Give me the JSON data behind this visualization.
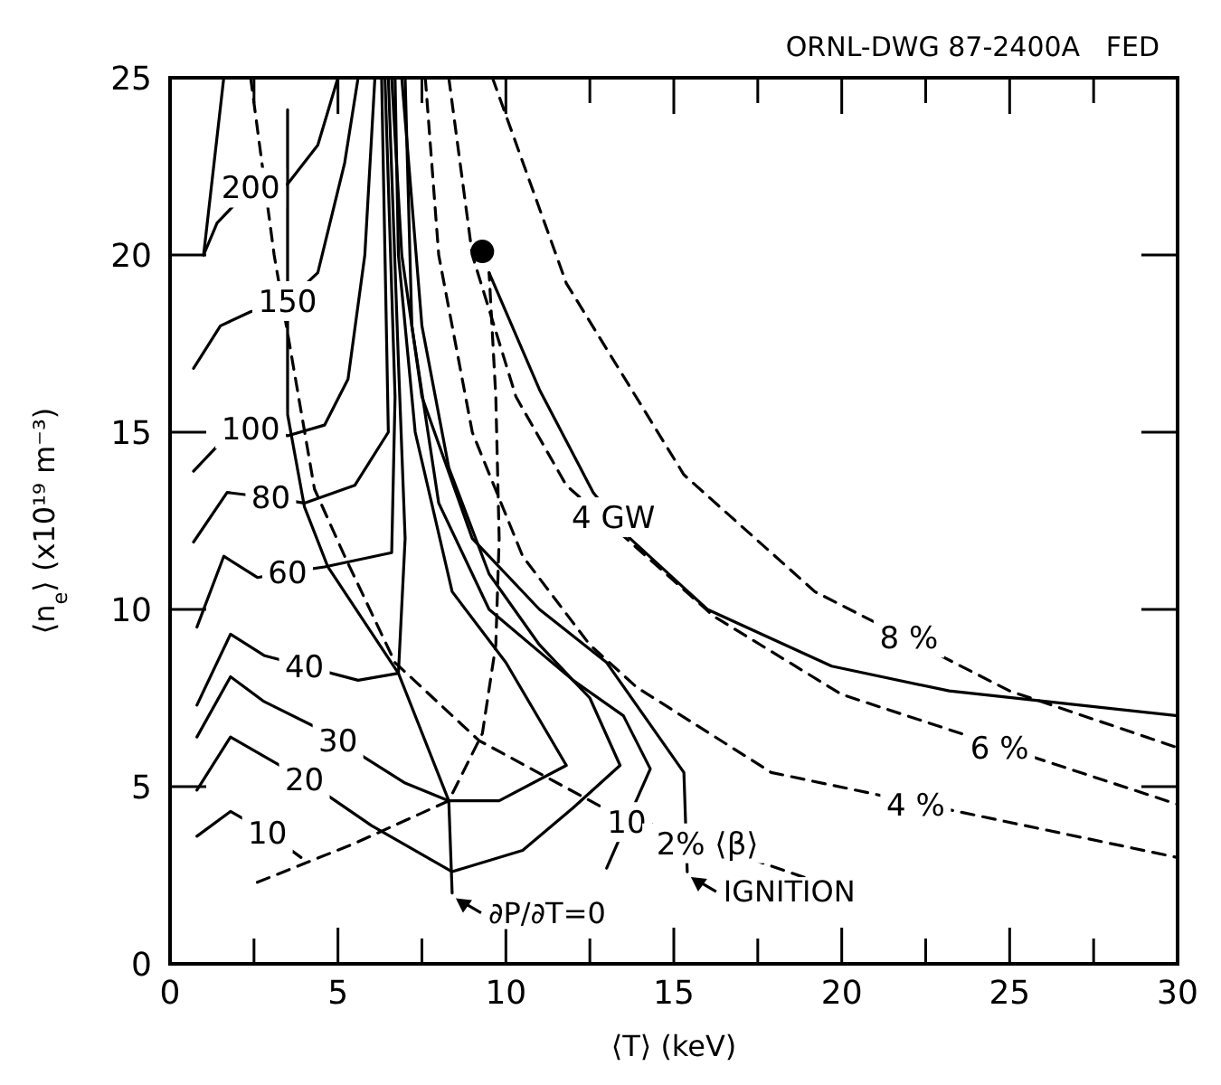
{
  "chart_data": {
    "type": "line",
    "xlabel": "⟨T⟩ (keV)",
    "ylabel": "⟨n$_{e}$⟩ (x10¹⁹ m⁻³)",
    "xlim": [
      0,
      30
    ],
    "ylim": [
      0,
      25
    ],
    "xticks": [
      0,
      {
        "value": 2.5,
        "label": null
      },
      5,
      {
        "value": 7.5,
        "label": null
      },
      10,
      {
        "value": 12.5,
        "label": null
      },
      15,
      {
        "value": 17.5,
        "label": null
      },
      20,
      {
        "value": 22.5,
        "label": null
      },
      25,
      {
        "value": 27.5,
        "label": null
      },
      30
    ],
    "yticks": [
      0,
      5,
      10,
      15,
      20,
      25
    ],
    "grid": false,
    "marker": "none",
    "series": [
      {
        "type": "line",
        "color": "#000000",
        "line_style": "solid",
        "x": [
          0.8,
          1.8,
          2.9,
          3.9
        ],
        "values": [
          3.6,
          4.3,
          3.7,
          3.0
        ]
      },
      {
        "type": "line",
        "color": "#000000",
        "line_style": "solid",
        "x": [
          7.0,
          7.2,
          8.0,
          9.5,
          12.0,
          13.5,
          14.3,
          13.6,
          13.0
        ],
        "values": [
          25,
          18,
          13,
          10,
          8,
          7,
          5.5,
          4.0,
          2.7
        ]
      },
      {
        "type": "line",
        "color": "#000000",
        "line_style": "solid",
        "x": [
          0.8,
          1.8,
          4.0,
          6.0,
          8.4,
          10.5,
          12.0,
          13.4,
          12.5,
          11.0,
          9.5,
          8.3,
          7.5,
          6.9
        ],
        "values": [
          4.9,
          6.4,
          5.2,
          3.9,
          2.6,
          3.2,
          4.4,
          5.6,
          7.5,
          9.0,
          11.0,
          14.0,
          18.0,
          25
        ]
      },
      {
        "type": "line",
        "color": "#000000",
        "line_style": "solid",
        "x": [
          0.8,
          1.8,
          2.8,
          4.5,
          5.0,
          7.0,
          8.3,
          9.8,
          11.8,
          10.0,
          8.4,
          7.3,
          6.8,
          6.7
        ],
        "values": [
          6.4,
          8.1,
          7.4,
          6.6,
          6.3,
          5.1,
          4.6,
          4.6,
          5.6,
          8.5,
          10.5,
          15,
          20,
          25
        ]
      },
      {
        "type": "line",
        "color": "#000000",
        "line_style": "solid",
        "x": [
          0.8,
          1.8,
          2.8,
          5.6,
          6.8,
          7.0,
          6.8,
          6.5
        ],
        "values": [
          7.3,
          9.3,
          8.7,
          8.0,
          8.2,
          12,
          17,
          25
        ]
      },
      {
        "type": "line",
        "color": "#000000",
        "line_style": "solid",
        "x": [
          0.8,
          1.6,
          2.6,
          3.5,
          4.6,
          6.6,
          6.7,
          6.4
        ],
        "values": [
          9.5,
          11.5,
          10.9,
          11.05,
          11.2,
          11.6,
          16,
          25
        ]
      },
      {
        "type": "line",
        "color": "#000000",
        "line_style": "solid",
        "x": [
          0.7,
          1.7,
          3.0,
          4.0,
          5.5,
          6.5,
          6.4,
          6.3
        ],
        "values": [
          11.9,
          13.3,
          13.15,
          13.0,
          13.5,
          15,
          20,
          25
        ]
      },
      {
        "type": "line",
        "color": "#000000",
        "line_style": "solid",
        "x": [
          0.7,
          1.7,
          2.4,
          3.5,
          4.6,
          5.3,
          5.8,
          6.1
        ],
        "values": [
          13.9,
          14.9,
          15.1,
          14.9,
          15.2,
          16.5,
          20,
          25
        ]
      },
      {
        "type": "line",
        "color": "#000000",
        "line_style": "solid",
        "x": [
          0.7,
          1.5,
          2.4,
          3.5,
          4.4,
          5.2,
          5.6
        ],
        "values": [
          16.8,
          18.0,
          18.4,
          18.7,
          19.5,
          22.6,
          25
        ]
      },
      {
        "type": "line",
        "color": "#000000",
        "line_style": "solid",
        "x": [
          1.0,
          1.4,
          2.4,
          3.5,
          4.4,
          5.0
        ],
        "values": [
          20.0,
          20.9,
          21.9,
          22.0,
          23.1,
          25
        ]
      },
      {
        "type": "line",
        "color": "#000000",
        "line_style": "solid",
        "x": [
          1.6,
          1.0
        ],
        "values": [
          25,
          20.0
        ]
      },
      {
        "type": "line",
        "color": "#000000",
        "line_style": "solid",
        "x": [
          3.5,
          3.5,
          4.0,
          4.7,
          6.8,
          8.3,
          8.4
        ],
        "values": [
          24.1,
          15.5,
          12.9,
          11.2,
          8.2,
          4.6,
          2.0
        ]
      },
      {
        "type": "line",
        "color": "#000000",
        "line_style": "solid",
        "x": [
          6.6,
          6.9,
          7.5,
          9.0,
          11.0,
          13.0,
          15.3,
          15.4
        ],
        "values": [
          25,
          20,
          16,
          12,
          10,
          8.5,
          5.4,
          2.6
        ]
      },
      {
        "type": "line",
        "color": "#000000",
        "line_style": "solid",
        "x": [
          9.5,
          11.0,
          12.6,
          13.7,
          16.0,
          19.7,
          23.2,
          30
        ],
        "values": [
          19.5,
          16.2,
          13.3,
          12.0,
          10.0,
          8.4,
          7.7,
          7.0
        ]
      },
      {
        "type": "line",
        "color": "#000000",
        "line_style": "dashed",
        "x": [
          9.6,
          11.8,
          15.3,
          19.2,
          25.0,
          30
        ],
        "values": [
          25,
          19.2,
          13.8,
          10.5,
          7.7,
          6.1
        ]
      },
      {
        "type": "line",
        "color": "#000000",
        "line_style": "dashed",
        "x": [
          8.3,
          9.0,
          10.3,
          11.8,
          16.2,
          20.0,
          30
        ],
        "values": [
          25,
          20,
          16,
          13.5,
          9.8,
          7.6,
          4.5
        ]
      },
      {
        "type": "line",
        "color": "#000000",
        "line_style": "dashed",
        "x": [
          7.6,
          8.0,
          9.0,
          10.5,
          12.5,
          13.9,
          17.9,
          30
        ],
        "values": [
          25,
          20,
          15,
          11.5,
          9.0,
          7.8,
          5.4,
          3.0
        ]
      },
      {
        "type": "line",
        "color": "#000000",
        "line_style": "dashed",
        "x": [
          2.4,
          3.1,
          4.3,
          5.2,
          6.7,
          9.2,
          12.9,
          19.0
        ],
        "values": [
          25,
          20,
          13.4,
          11.5,
          8.5,
          6.3,
          4.4,
          2.4
        ]
      },
      {
        "type": "line",
        "color": "#000000",
        "line_style": "dashed",
        "x": [
          2.6,
          5.5,
          8.3,
          9.3,
          9.7,
          9.8,
          9.7,
          9.5
        ],
        "values": [
          2.3,
          3.4,
          4.6,
          6.5,
          9.0,
          12.0,
          16.0,
          19.5
        ]
      },
      {
        "type": "scatter",
        "color": "#000000",
        "marker": "circle",
        "x": [
          9.3
        ],
        "values": [
          20.1
        ]
      }
    ],
    "annotations": [
      "ORNL-DWG 87-2400A   FED",
      {
        "text": "200",
        "x": 2.4,
        "y": 21.9
      },
      {
        "text": "150",
        "x": 3.5,
        "y": 18.7
      },
      {
        "text": "100",
        "x": 2.4,
        "y": 15.1
      },
      {
        "text": "80",
        "x": 3.0,
        "y": 13.15
      },
      {
        "text": "60",
        "x": 3.5,
        "y": 11.05
      },
      {
        "text": "40",
        "x": 4.0,
        "y": 8.4
      },
      {
        "text": "30",
        "x": 5.0,
        "y": 6.3
      },
      {
        "text": "20",
        "x": 4.0,
        "y": 5.2
      },
      {
        "text": "10",
        "x": 2.9,
        "y": 3.7
      },
      {
        "text": "10",
        "x": 13.6,
        "y": 4.0
      },
      {
        "text": "4 GW",
        "x": 13.2,
        "y": 12.6
      },
      {
        "text": "8 %",
        "x": 22.0,
        "y": 9.2
      },
      {
        "text": "6 %",
        "x": 24.7,
        "y": 6.1
      },
      {
        "text": "4 %",
        "x": 22.2,
        "y": 4.5
      },
      {
        "text": "2% ⟨β⟩",
        "x": 16.0,
        "y": 3.4
      },
      {
        "text": "∂P/∂T=0",
        "x": 8.4,
        "y": 2.0
      },
      {
        "text": "IGNITION",
        "x": 15.4,
        "y": 2.6
      }
    ]
  }
}
